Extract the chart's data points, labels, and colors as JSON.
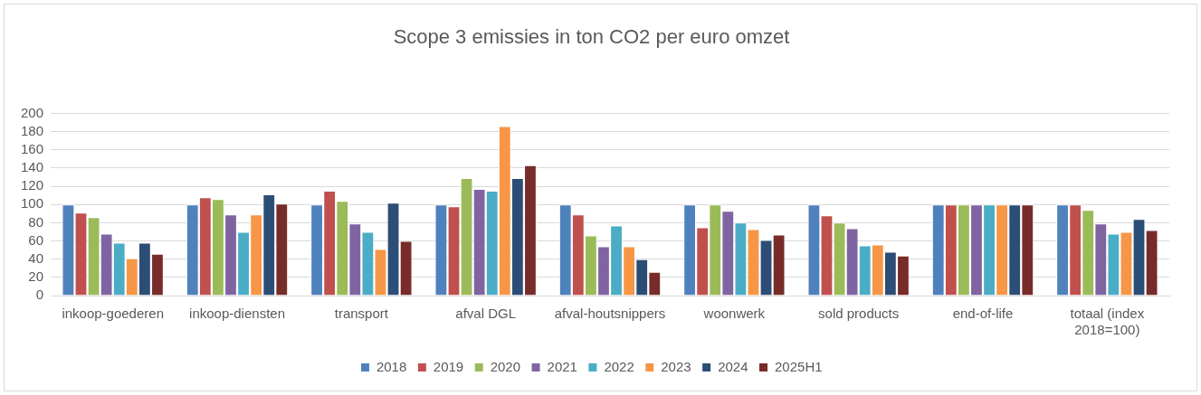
{
  "chart_data": {
    "type": "bar",
    "title": "Scope 3 emissies in ton CO2 per euro omzet",
    "categories": [
      "inkoop-goederen",
      "inkoop-diensten",
      "transport",
      "afval DGL",
      "afval-houtsnippers",
      "woonwerk",
      "sold products",
      "end-of-life",
      "totaal (index 2018=100)"
    ],
    "series": [
      {
        "name": "2018",
        "color": "#4f81bd",
        "values": [
          100,
          100,
          100,
          100,
          100,
          100,
          100,
          100,
          100
        ]
      },
      {
        "name": "2019",
        "color": "#c0504d",
        "values": [
          91,
          108,
          115,
          98,
          89,
          75,
          88,
          100,
          100
        ]
      },
      {
        "name": "2020",
        "color": "#9bbb59",
        "values": [
          86,
          106,
          104,
          129,
          66,
          100,
          80,
          100,
          94
        ]
      },
      {
        "name": "2021",
        "color": "#8064a2",
        "values": [
          68,
          89,
          79,
          117,
          54,
          93,
          74,
          100,
          79
        ]
      },
      {
        "name": "2022",
        "color": "#4bacc6",
        "values": [
          58,
          70,
          70,
          115,
          77,
          80,
          55,
          100,
          68
        ]
      },
      {
        "name": "2023",
        "color": "#f79646",
        "values": [
          41,
          89,
          51,
          186,
          54,
          73,
          56,
          100,
          70
        ]
      },
      {
        "name": "2024",
        "color": "#2c4d75",
        "values": [
          58,
          111,
          102,
          129,
          40,
          61,
          48,
          100,
          84
        ]
      },
      {
        "name": "2025H1",
        "color": "#772c2a",
        "values": [
          46,
          101,
          60,
          143,
          26,
          67,
          44,
          100,
          72
        ]
      }
    ],
    "ylim": [
      0,
      200
    ],
    "yticks": [
      0,
      20,
      40,
      60,
      80,
      100,
      120,
      140,
      160,
      180,
      200
    ],
    "grid": "y",
    "legend": "bottom"
  }
}
